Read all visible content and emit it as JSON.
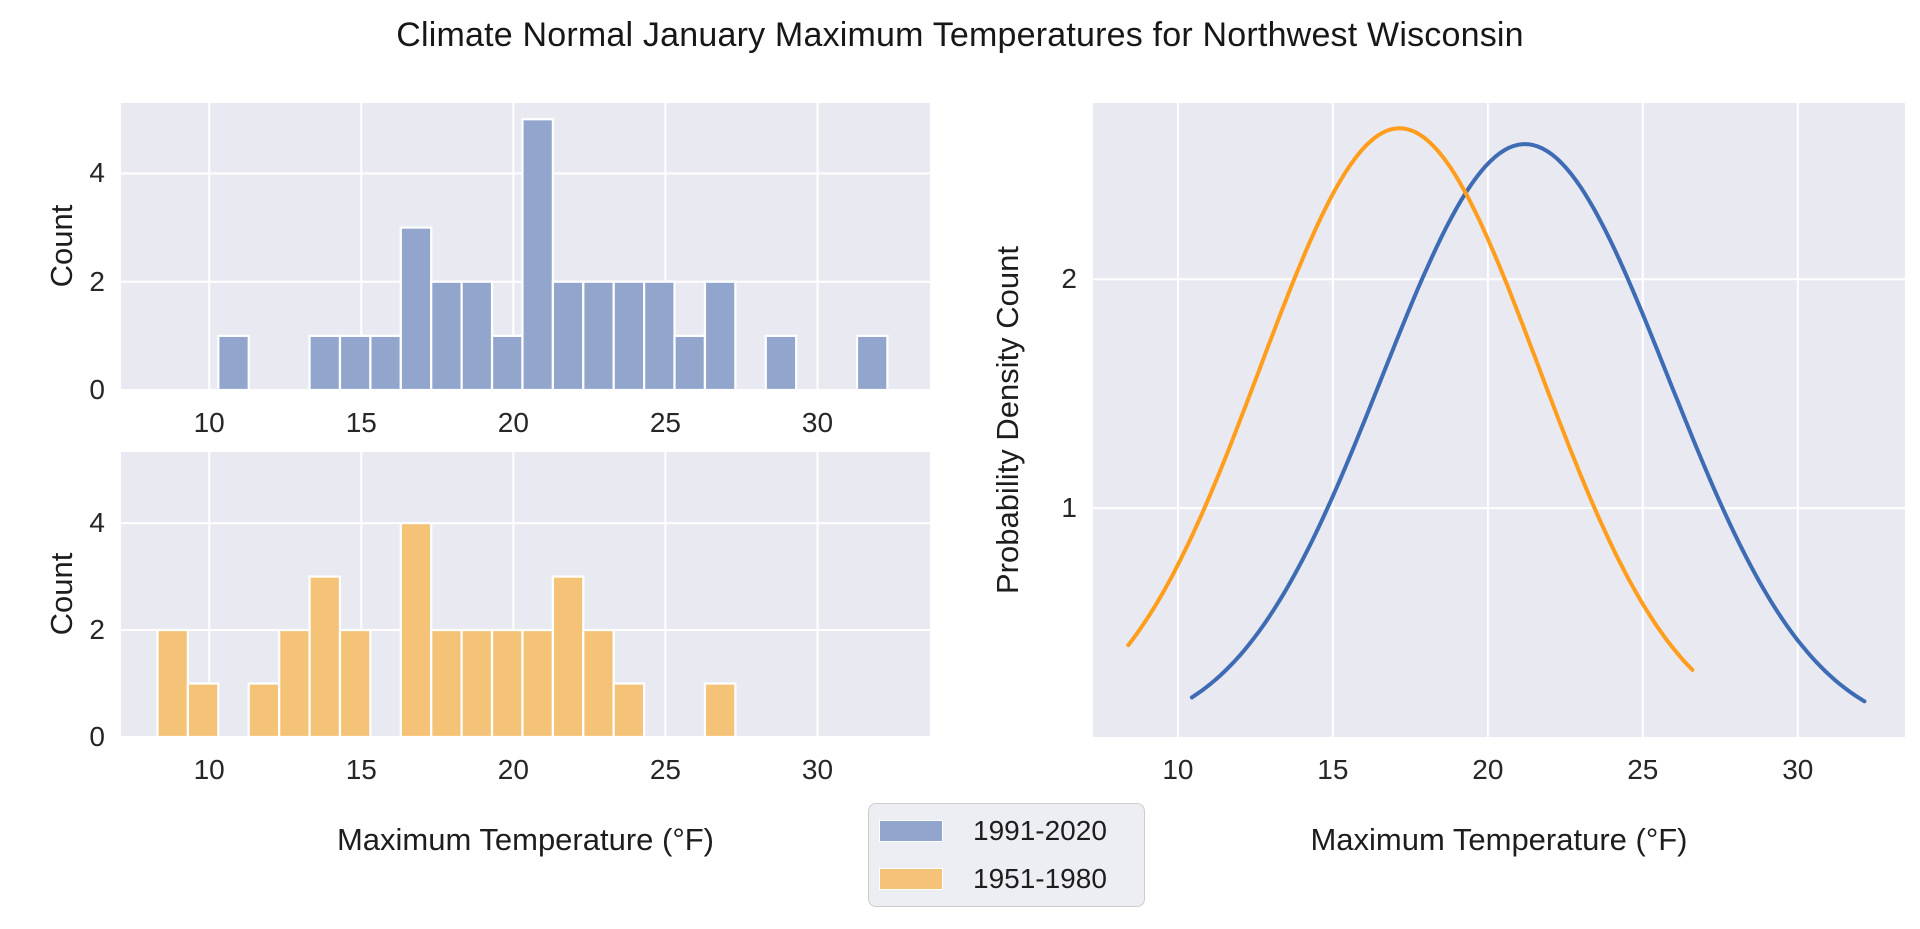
{
  "title": "Climate Normal January Maximum Temperatures for Northwest Wisconsin",
  "colors": {
    "plot_background": "#e9e9f2",
    "gridline": "#ffffff",
    "text": "#262626",
    "hist_blue": "#92a6cd",
    "hist_orange": "#f5c377",
    "line_blue": "#3d6bb4",
    "line_orange": "#ff9e1d",
    "legend_background": "#ededf4",
    "legend_border": "#cccccc"
  },
  "legend": {
    "items": [
      {
        "label": "1991-2020",
        "color": "#92a6cd"
      },
      {
        "label": "1951-1980",
        "color": "#f5c377"
      }
    ]
  },
  "axis_labels": {
    "left_x": "Maximum Temperature (°F)",
    "right_x": "Maximum Temperature (°F)",
    "top_left_y": "Count",
    "bottom_left_y": "Count",
    "right_y": "Probability Density Count"
  },
  "chart_data": [
    {
      "type": "bar",
      "panel": "top-left-histogram",
      "series_label": "1991-2020",
      "color": "#92a6cd",
      "bin_width": 1.0,
      "bin_left_edges": [
        10.3,
        13.3,
        14.3,
        15.3,
        16.3,
        17.3,
        18.3,
        19.3,
        20.3,
        21.3,
        22.3,
        23.3,
        24.3,
        25.3,
        26.3,
        28.3,
        31.3
      ],
      "counts": [
        1,
        1,
        1,
        1,
        3,
        2,
        2,
        1,
        5,
        2,
        2,
        2,
        2,
        1,
        2,
        1,
        1
      ],
      "total_count": 30,
      "xlabel": "Maximum Temperature (°F)",
      "ylabel": "Count",
      "xlim": [
        7.1,
        33.7
      ],
      "ylim": [
        0,
        5.3
      ],
      "xticks": [
        10,
        15,
        20,
        25,
        30
      ],
      "yticks": [
        0,
        2,
        4
      ],
      "grid": true
    },
    {
      "type": "bar",
      "panel": "bottom-left-histogram",
      "series_label": "1951-1980",
      "color": "#f5c377",
      "bin_width": 1.0,
      "bin_left_edges": [
        8.3,
        9.3,
        11.3,
        12.3,
        13.3,
        14.3,
        16.3,
        17.3,
        18.3,
        19.3,
        20.3,
        21.3,
        22.3,
        23.3,
        26.3
      ],
      "counts": [
        2,
        1,
        1,
        2,
        3,
        2,
        4,
        2,
        2,
        2,
        2,
        3,
        2,
        1,
        1
      ],
      "total_count": 30,
      "xlabel": "Maximum Temperature (°F)",
      "ylabel": "Count",
      "xlim": [
        7.1,
        33.7
      ],
      "ylim": [
        0,
        5.33
      ],
      "xticks": [
        10,
        15,
        20,
        25,
        30
      ],
      "yticks": [
        0,
        2,
        4
      ],
      "grid": true
    },
    {
      "type": "line",
      "panel": "right-density-curves",
      "xlabel": "Maximum Temperature (°F)",
      "ylabel": "Probability Density Count",
      "xlim": [
        7.26,
        33.46
      ],
      "ylim": [
        0,
        2.77
      ],
      "xticks": [
        10,
        15,
        20,
        25,
        30
      ],
      "yticks": [
        1,
        2
      ],
      "grid": true,
      "series": [
        {
          "name": "1991-2020",
          "color": "#3d6bb4",
          "curve": "scaled_normal_pdf",
          "mean": 21.2,
          "sd": 4.62,
          "scale": 30,
          "x_range": [
            10.45,
            32.15
          ],
          "peak_point": [
            21.2,
            2.59
          ]
        },
        {
          "name": "1951-1980",
          "color": "#ff9e1d",
          "curve": "scaled_normal_pdf",
          "mean": 17.15,
          "sd": 4.5,
          "scale": 30,
          "x_range": [
            8.4,
            26.6
          ],
          "peak_point": [
            17.15,
            2.66
          ]
        }
      ]
    }
  ]
}
